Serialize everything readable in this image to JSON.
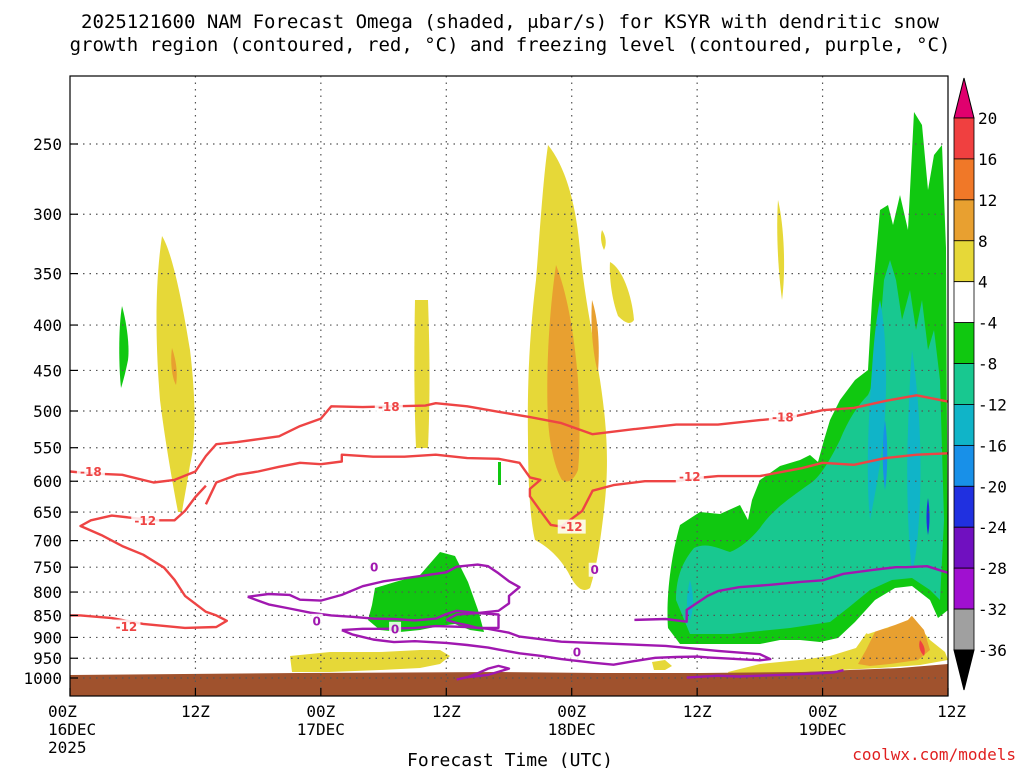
{
  "chart_data": {
    "type": "time-height cross section",
    "title_line1": "2025121600 NAM Forecast Omega (shaded, μbar/s) for KSYR with dendritic snow",
    "title_line2": "growth region (contoured, red, °C) and freezing level (contoured, purple, °C)",
    "xlabel": "Forecast Time (UTC)",
    "ylabel": "",
    "credit": "coolwx.com/models",
    "x_range_hours": [
      0,
      84
    ],
    "y_range_hpa": [
      1025,
      200
    ],
    "y_ticks": [
      250,
      300,
      350,
      400,
      450,
      500,
      550,
      600,
      650,
      700,
      750,
      800,
      850,
      900,
      950,
      1000
    ],
    "x_ticks": [
      {
        "hour": 0,
        "lines": [
          "00Z",
          "16DEC",
          "2025"
        ]
      },
      {
        "hour": 12,
        "lines": [
          "12Z"
        ]
      },
      {
        "hour": 24,
        "lines": [
          "00Z",
          "17DEC"
        ]
      },
      {
        "hour": 36,
        "lines": [
          "12Z"
        ]
      },
      {
        "hour": 48,
        "lines": [
          "00Z",
          "18DEC"
        ]
      },
      {
        "hour": 60,
        "lines": [
          "12Z"
        ]
      },
      {
        "hour": 72,
        "lines": [
          "00Z",
          "19DEC"
        ]
      },
      {
        "hour": 84,
        "lines": [
          "12Z"
        ]
      }
    ],
    "colorbar": {
      "labels": [
        "20",
        "16",
        "12",
        "8",
        "4",
        "-4",
        "-8",
        "-12",
        "-16",
        "-20",
        "-24",
        "-28",
        "-32",
        "-36"
      ],
      "bins": [
        {
          "range": ">20",
          "color": "#e0006e"
        },
        {
          "range": "16 to 20",
          "color": "#f04040"
        },
        {
          "range": "12 to 16",
          "color": "#f07828"
        },
        {
          "range": "8 to 12",
          "color": "#e8a030"
        },
        {
          "range": "4 to 8",
          "color": "#e6d838"
        },
        {
          "range": "-4 to 4",
          "color": "#ffffff"
        },
        {
          "range": "-8 to -4",
          "color": "#10c810"
        },
        {
          "range": "-12 to -8",
          "color": "#18c890"
        },
        {
          "range": "-16 to -12",
          "color": "#10b4c8"
        },
        {
          "range": "-20 to -16",
          "color": "#1890e8"
        },
        {
          "range": "-24 to -20",
          "color": "#2030e0"
        },
        {
          "range": "-28 to -24",
          "color": "#7010c0"
        },
        {
          "range": "-32 to -28",
          "color": "#a010d0"
        },
        {
          "range": "-36 to -32",
          "color": "#a0a0a0"
        },
        {
          "range": "<-36",
          "color": "#000000"
        }
      ]
    },
    "isotherms": [
      {
        "label": "-18",
        "color": "#ee4444",
        "points": [
          [
            0,
            585
          ],
          [
            2,
            588
          ],
          [
            5,
            590
          ],
          [
            8,
            602
          ],
          [
            10,
            598
          ],
          [
            12,
            585
          ],
          [
            13,
            562
          ],
          [
            14,
            545
          ],
          [
            16,
            542
          ],
          [
            18,
            538
          ],
          [
            20,
            534
          ],
          [
            22,
            520
          ],
          [
            24,
            510
          ],
          [
            25,
            494
          ],
          [
            28,
            495
          ],
          [
            31,
            494
          ],
          [
            34,
            493
          ],
          [
            35,
            490
          ],
          [
            38,
            494
          ],
          [
            41,
            501
          ],
          [
            44,
            508
          ],
          [
            47,
            516
          ],
          [
            50,
            531
          ],
          [
            54,
            524
          ],
          [
            58,
            518
          ],
          [
            62,
            518
          ],
          [
            66,
            512
          ],
          [
            69,
            508
          ],
          [
            72,
            499
          ],
          [
            75,
            496
          ],
          [
            78,
            487
          ],
          [
            81,
            480
          ],
          [
            84,
            488
          ]
        ]
      },
      {
        "label": "-12",
        "color": "#ee4444",
        "points": [
          [
            13,
            607
          ],
          [
            12,
            625
          ],
          [
            11,
            648
          ],
          [
            10,
            664
          ],
          [
            8,
            664
          ],
          [
            6,
            660
          ],
          [
            4,
            656
          ],
          [
            2,
            664
          ],
          [
            1,
            674
          ],
          [
            3,
            690
          ],
          [
            5,
            710
          ],
          [
            7,
            726
          ],
          [
            9,
            751
          ],
          [
            10,
            775
          ],
          [
            11,
            808
          ],
          [
            13,
            842
          ],
          [
            14,
            850
          ],
          [
            15,
            862
          ],
          [
            14,
            876
          ],
          [
            11,
            878
          ],
          [
            7,
            869
          ],
          [
            4,
            856
          ],
          [
            1,
            850
          ],
          [
            0,
            850
          ]
        ]
      },
      {
        "label": "-12",
        "color": "#ee4444",
        "points": [
          [
            13,
            637
          ],
          [
            14,
            602
          ],
          [
            16,
            590
          ],
          [
            18,
            585
          ],
          [
            20,
            578
          ],
          [
            22,
            572
          ],
          [
            24,
            574
          ],
          [
            26,
            570
          ],
          [
            26,
            560
          ],
          [
            29,
            563
          ],
          [
            32,
            563
          ],
          [
            35,
            560
          ],
          [
            38,
            565
          ],
          [
            41,
            566
          ],
          [
            43,
            572
          ],
          [
            44,
            594
          ],
          [
            45,
            598
          ],
          [
            44,
            612
          ],
          [
            44,
            624
          ],
          [
            45,
            648
          ],
          [
            46,
            672
          ],
          [
            47,
            675
          ],
          [
            49,
            648
          ],
          [
            50,
            615
          ],
          [
            52,
            606
          ],
          [
            55,
            600
          ],
          [
            58,
            600
          ],
          [
            60,
            595
          ],
          [
            62,
            592
          ],
          [
            66,
            592
          ],
          [
            70,
            580
          ],
          [
            72,
            572
          ],
          [
            75,
            575
          ],
          [
            78,
            565
          ],
          [
            81,
            560
          ],
          [
            84,
            558
          ]
        ]
      },
      {
        "label": "0",
        "color": "#a018b0",
        "points": [
          [
            17,
            810
          ],
          [
            19,
            804
          ],
          [
            21,
            806
          ],
          [
            22,
            816
          ],
          [
            24,
            818
          ],
          [
            26,
            806
          ],
          [
            28,
            788
          ],
          [
            30,
            778
          ],
          [
            32,
            772
          ],
          [
            34,
            766
          ],
          [
            36,
            760
          ],
          [
            37,
            749
          ],
          [
            39,
            745
          ],
          [
            40,
            748
          ],
          [
            41,
            762
          ],
          [
            42,
            778
          ],
          [
            43,
            790
          ],
          [
            42,
            808
          ],
          [
            42,
            824
          ],
          [
            41,
            840
          ],
          [
            39,
            845
          ],
          [
            37,
            840
          ],
          [
            36,
            847
          ],
          [
            35,
            857
          ],
          [
            33,
            861
          ],
          [
            31,
            858
          ],
          [
            29,
            857
          ],
          [
            27,
            853
          ],
          [
            25,
            850
          ],
          [
            23,
            844
          ],
          [
            21,
            835
          ],
          [
            19,
            826
          ],
          [
            18,
            818
          ],
          [
            17,
            810
          ]
        ]
      },
      {
        "label": "0",
        "color": "#a018b0",
        "points": [
          [
            36,
            860
          ],
          [
            37,
            848
          ],
          [
            39,
            845
          ],
          [
            41,
            848
          ],
          [
            41,
            862
          ],
          [
            41,
            878
          ],
          [
            39,
            878
          ],
          [
            38,
            872
          ],
          [
            37,
            867
          ],
          [
            36,
            860
          ]
        ]
      },
      {
        "label": "0",
        "color": "#a018b0",
        "points": [
          [
            26,
            883
          ],
          [
            27,
            893
          ],
          [
            29,
            905
          ],
          [
            31,
            911
          ],
          [
            33,
            909
          ],
          [
            36,
            913
          ],
          [
            38,
            918
          ],
          [
            40,
            924
          ],
          [
            41,
            929
          ],
          [
            43,
            938
          ],
          [
            45,
            944
          ],
          [
            47,
            952
          ],
          [
            50,
            961
          ],
          [
            52,
            966
          ],
          [
            54,
            957
          ],
          [
            56,
            949
          ],
          [
            58,
            947
          ],
          [
            60,
            946
          ],
          [
            61,
            948
          ],
          [
            63,
            951
          ],
          [
            66,
            955
          ],
          [
            67,
            952
          ],
          [
            66,
            940
          ],
          [
            62,
            932
          ],
          [
            57,
            920
          ],
          [
            52,
            915
          ],
          [
            47,
            910
          ],
          [
            43,
            898
          ],
          [
            42,
            889
          ],
          [
            40,
            880
          ],
          [
            38,
            876
          ],
          [
            35,
            874
          ],
          [
            33,
            878
          ],
          [
            30,
            880
          ],
          [
            28,
            880
          ],
          [
            26,
            883
          ]
        ]
      },
      {
        "label": "0",
        "color": "#a018b0",
        "points": [
          [
            54,
            860
          ],
          [
            57,
            858
          ],
          [
            59,
            864
          ],
          [
            59,
            838
          ],
          [
            61,
            808
          ],
          [
            62,
            798
          ],
          [
            64,
            790
          ],
          [
            67,
            785
          ],
          [
            70,
            779
          ],
          [
            72,
            776
          ],
          [
            74,
            763
          ],
          [
            77,
            755
          ],
          [
            79,
            750
          ],
          [
            80,
            750
          ],
          [
            82,
            748
          ],
          [
            84,
            761
          ]
        ]
      },
      {
        "label": "0",
        "color": "#a018b0",
        "points": [
          [
            37,
            1004
          ],
          [
            38,
            998
          ],
          [
            39,
            988
          ],
          [
            40,
            976
          ],
          [
            41,
            969
          ],
          [
            42,
            976
          ],
          [
            40,
            992
          ],
          [
            38,
            998
          ],
          [
            37,
            1004
          ]
        ]
      },
      {
        "label": "0",
        "color": "#a018b0",
        "points": [
          [
            59,
            999
          ],
          [
            62,
            994
          ],
          [
            64,
            996
          ],
          [
            67,
            993
          ],
          [
            71,
            989
          ],
          [
            73,
            986
          ],
          [
            74,
            980
          ]
        ]
      }
    ],
    "isotherm_labels": [
      {
        "text": "-18",
        "hour": 2.0,
        "hpa": 585,
        "color": "#ee4444"
      },
      {
        "text": "-18",
        "hour": 30.5,
        "hpa": 494,
        "color": "#ee4444"
      },
      {
        "text": "-18",
        "hour": 68.2,
        "hpa": 508,
        "color": "#ee4444"
      },
      {
        "text": "-12",
        "hour": 7.2,
        "hpa": 664,
        "color": "#ee4444"
      },
      {
        "text": "-12",
        "hour": 5.4,
        "hpa": 875,
        "color": "#ee4444"
      },
      {
        "text": "-12",
        "hour": 48.0,
        "hpa": 675,
        "color": "#ee4444"
      },
      {
        "text": "-12",
        "hour": 59.3,
        "hpa": 593,
        "color": "#ee4444"
      },
      {
        "text": "0",
        "hour": 29.1,
        "hpa": 750,
        "color": "#a018b0"
      },
      {
        "text": "0",
        "hour": 23.6,
        "hpa": 862,
        "color": "#a018b0"
      },
      {
        "text": "0",
        "hour": 31.1,
        "hpa": 880,
        "color": "#a018b0"
      },
      {
        "text": "0",
        "hour": 50.2,
        "hpa": 755,
        "color": "#a018b0"
      },
      {
        "text": "0",
        "hour": 48.5,
        "hpa": 935,
        "color": "#a018b0"
      }
    ]
  }
}
